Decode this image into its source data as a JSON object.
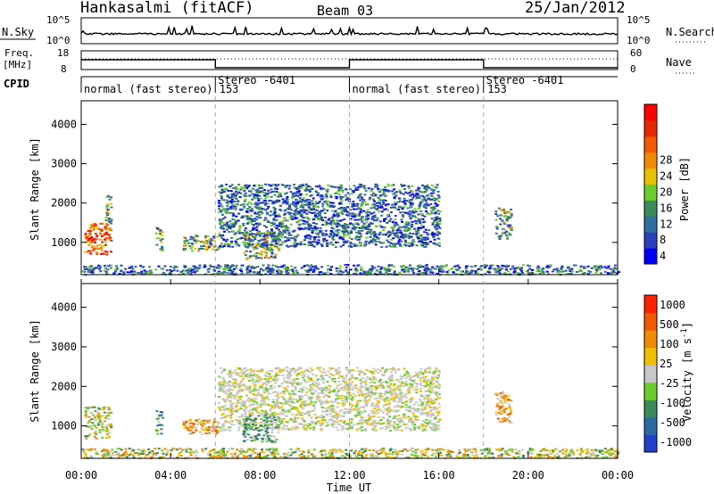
{
  "header": {
    "station": "Hankasalmi (fitACF)",
    "beam": "Beam 03",
    "date": "25/Jan/2012"
  },
  "noise_panel": {
    "left_label": "N.Sky",
    "right_label": "N.Search",
    "left_ticks": [
      "10^5",
      "10^0"
    ],
    "right_ticks": [
      "10^5",
      "10^0"
    ]
  },
  "freq_panel": {
    "left_label_lines": [
      "Freq.",
      "[MHz]"
    ],
    "left_ticks": [
      "18",
      "8"
    ],
    "right_label": "Nave",
    "right_ticks": [
      "60",
      "0"
    ]
  },
  "cpid_panel": {
    "label": "CPID",
    "segments": [
      {
        "start_hour": 0,
        "end_hour": 6,
        "text": "normal (fast stereo) 153"
      },
      {
        "start_hour": 6,
        "end_hour": 12,
        "text": "Stereo -6401"
      },
      {
        "start_hour": 12,
        "end_hour": 18,
        "text": "normal (fast stereo) 153"
      },
      {
        "start_hour": 18,
        "end_hour": 24,
        "text": "Stereo -6401"
      }
    ]
  },
  "x_axis": {
    "label": "Time UT",
    "tick_labels": [
      "00:00",
      "04:00",
      "08:00",
      "12:00",
      "16:00",
      "20:00",
      "00:00"
    ]
  },
  "chart_data": [
    {
      "type": "heatmap",
      "panel": "power",
      "ylabel": "Slant Range [km]",
      "xlim_hours": [
        0,
        24
      ],
      "ylim": [
        180,
        4600
      ],
      "y_ticks": [
        1000,
        2000,
        3000,
        4000
      ],
      "colorbar": {
        "label": "Power [dB]",
        "tick_labels": [
          "4",
          "8",
          "12",
          "16",
          "20",
          "24",
          "28"
        ],
        "colors": [
          "#0000ff",
          "#2b3fb8",
          "#2f6fa0",
          "#3c8a5a",
          "#6ccc2c",
          "#e6c200",
          "#f08c00",
          "#f05a00",
          "#e62a00",
          "#ff0000"
        ]
      },
      "echo_regions": [
        {
          "t": [
            0.1,
            1.3
          ],
          "range": [
            700,
            1500
          ],
          "level": "high"
        },
        {
          "t": [
            1.0,
            1.3
          ],
          "range": [
            1500,
            2200
          ],
          "level": "mid"
        },
        {
          "t": [
            3.3,
            3.6
          ],
          "range": [
            800,
            1400
          ],
          "level": "mid"
        },
        {
          "t": [
            4.5,
            6.1
          ],
          "range": [
            800,
            1200
          ],
          "level": "mid"
        },
        {
          "t": [
            6.1,
            16.0
          ],
          "range": [
            900,
            2500
          ],
          "level": "low"
        },
        {
          "t": [
            7.2,
            8.8
          ],
          "range": [
            600,
            1300
          ],
          "level": "mid"
        },
        {
          "t": [
            18.5,
            19.2
          ],
          "range": [
            1100,
            1900
          ],
          "level": "mid"
        },
        {
          "t": [
            0.0,
            24.0
          ],
          "range": [
            200,
            450
          ],
          "level": "low"
        }
      ]
    },
    {
      "type": "heatmap",
      "panel": "velocity",
      "ylabel": "Slant Range [km]",
      "xlim_hours": [
        0,
        24
      ],
      "ylim": [
        180,
        4600
      ],
      "y_ticks": [
        1000,
        2000,
        3000,
        4000
      ],
      "colorbar": {
        "label": "Velocity [m s^-1]",
        "tick_labels": [
          "1000",
          "500",
          "100",
          "25",
          "-25",
          "-100",
          "-500",
          "-1000"
        ],
        "colors": [
          "#2040c8",
          "#2a6aa0",
          "#3c8a5a",
          "#6ccc2c",
          "#c8c8c8",
          "#f0c000",
          "#f08c00",
          "#f05a00",
          "#ff2000"
        ]
      },
      "echo_regions": [
        {
          "t": [
            0.1,
            1.3
          ],
          "range": [
            700,
            1500
          ],
          "level": "mixed"
        },
        {
          "t": [
            3.3,
            3.6
          ],
          "range": [
            800,
            1400
          ],
          "level": "green"
        },
        {
          "t": [
            4.5,
            6.1
          ],
          "range": [
            800,
            1200
          ],
          "level": "orange"
        },
        {
          "t": [
            6.1,
            16.0
          ],
          "range": [
            900,
            2500
          ],
          "level": "grey"
        },
        {
          "t": [
            7.2,
            8.8
          ],
          "range": [
            600,
            1300
          ],
          "level": "green"
        },
        {
          "t": [
            18.5,
            19.2
          ],
          "range": [
            1100,
            1900
          ],
          "level": "orange"
        },
        {
          "t": [
            0.0,
            24.0
          ],
          "range": [
            200,
            450
          ],
          "level": "mixed"
        }
      ]
    }
  ]
}
